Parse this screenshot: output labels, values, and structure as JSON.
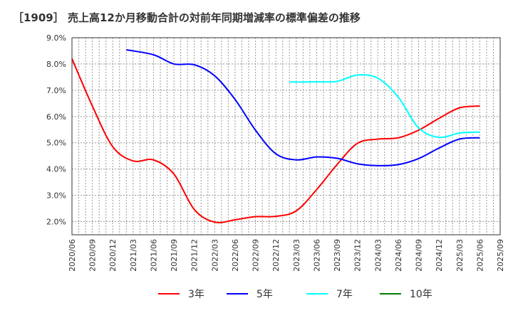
{
  "chart_data": {
    "type": "line",
    "title": "［1909］ 売上高12か月移動合計の対前年同期増減率の標準偏差の推移",
    "xlabel": "",
    "ylabel": "",
    "ylim": [
      1.5,
      9.0
    ],
    "xrange": [
      "2020/06",
      "2025/09"
    ],
    "yticks": [
      "2.0%",
      "3.0%",
      "4.0%",
      "5.0%",
      "6.0%",
      "7.0%",
      "8.0%",
      "9.0%"
    ],
    "ytick_values": [
      2,
      3,
      4,
      5,
      6,
      7,
      8,
      9
    ],
    "xticks": [
      "2020/06",
      "2020/09",
      "2020/12",
      "2021/03",
      "2021/06",
      "2021/09",
      "2021/12",
      "2022/03",
      "2022/06",
      "2022/09",
      "2022/12",
      "2023/03",
      "2023/06",
      "2023/09",
      "2023/12",
      "2024/03",
      "2024/06",
      "2024/09",
      "2024/12",
      "2025/03",
      "2025/06",
      "2025/09"
    ],
    "grid": true,
    "legend_position": "bottom",
    "series": [
      {
        "name": "3年",
        "color": "#ff0000",
        "x": [
          "2020/06",
          "2020/09",
          "2020/12",
          "2021/03",
          "2021/06",
          "2021/09",
          "2021/12",
          "2022/03",
          "2022/06",
          "2022/09",
          "2022/12",
          "2023/03",
          "2023/06",
          "2023/09",
          "2023/12",
          "2024/03",
          "2024/06",
          "2024/09",
          "2024/12",
          "2025/03",
          "2025/06"
        ],
        "values": [
          8.2,
          6.4,
          4.85,
          4.31,
          4.35,
          3.81,
          2.46,
          1.98,
          2.07,
          2.19,
          2.2,
          2.41,
          3.22,
          4.17,
          4.98,
          5.14,
          5.19,
          5.48,
          5.93,
          6.33,
          6.4
        ]
      },
      {
        "name": "5年",
        "color": "#0000ff",
        "x": [
          "2021/02",
          "2021/06",
          "2021/09",
          "2021/12",
          "2022/03",
          "2022/06",
          "2022/09",
          "2022/12",
          "2023/03",
          "2023/06",
          "2023/09",
          "2023/12",
          "2024/03",
          "2024/06",
          "2024/09",
          "2024/12",
          "2025/03",
          "2025/06"
        ],
        "values": [
          8.54,
          8.35,
          8.0,
          7.97,
          7.55,
          6.65,
          5.48,
          4.58,
          4.35,
          4.46,
          4.41,
          4.2,
          4.13,
          4.17,
          4.4,
          4.8,
          5.14,
          5.19
        ]
      },
      {
        "name": "7年",
        "color": "#00ffff",
        "x": [
          "2023/02",
          "2023/06",
          "2023/09",
          "2023/12",
          "2024/03",
          "2024/06",
          "2024/09",
          "2024/12",
          "2025/03",
          "2025/06"
        ],
        "values": [
          7.31,
          7.32,
          7.34,
          7.58,
          7.46,
          6.74,
          5.57,
          5.21,
          5.37,
          5.41
        ]
      },
      {
        "name": "10年",
        "color": "#008000",
        "x": [],
        "values": []
      }
    ]
  }
}
